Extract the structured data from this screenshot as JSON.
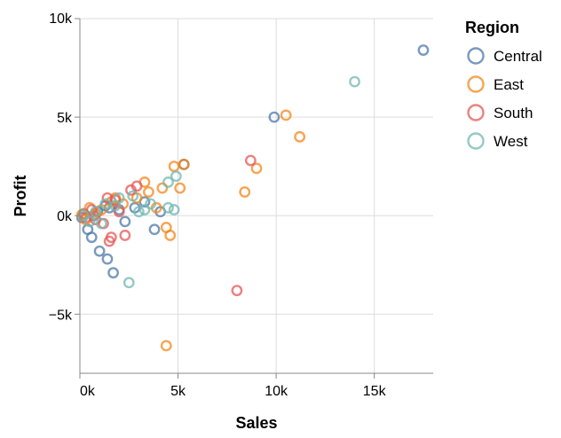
{
  "chart_data": {
    "type": "scatter",
    "title": "",
    "xlabel": "Sales",
    "ylabel": "Profit",
    "xlim": [
      0,
      18000
    ],
    "ylim": [
      -8000,
      10000
    ],
    "x_ticks": [
      0,
      5000,
      10000,
      15000
    ],
    "x_tick_labels": [
      "0k",
      "5k",
      "10k",
      "15k"
    ],
    "y_ticks": [
      -5000,
      0,
      5000,
      10000
    ],
    "y_tick_labels": [
      "−5k",
      "0k",
      "5k",
      "10k"
    ],
    "grid": true,
    "legend_title": "Region",
    "legend_position": "right",
    "series": [
      {
        "name": "Central",
        "color": "#4c78a8",
        "points": [
          [
            17500,
            8400
          ],
          [
            9900,
            5000
          ],
          [
            5300,
            2600
          ],
          [
            3300,
            700
          ],
          [
            4100,
            200
          ],
          [
            3800,
            -700
          ],
          [
            2300,
            -300
          ],
          [
            1700,
            -2900
          ],
          [
            1400,
            -2200
          ],
          [
            1000,
            -1800
          ],
          [
            600,
            -1100
          ],
          [
            400,
            -700
          ],
          [
            1500,
            400
          ],
          [
            1300,
            500
          ],
          [
            200,
            100
          ],
          [
            700,
            0
          ],
          [
            100,
            -100
          ],
          [
            900,
            200
          ],
          [
            2000,
            300
          ],
          [
            2800,
            400
          ]
        ]
      },
      {
        "name": "East",
        "color": "#f58518",
        "points": [
          [
            10500,
            5100
          ],
          [
            11200,
            4000
          ],
          [
            9000,
            2400
          ],
          [
            8400,
            1200
          ],
          [
            5300,
            2600
          ],
          [
            4800,
            2500
          ],
          [
            5100,
            1400
          ],
          [
            3500,
            1200
          ],
          [
            3300,
            1700
          ],
          [
            4200,
            1400
          ],
          [
            4400,
            -600
          ],
          [
            4600,
            -1000
          ],
          [
            4400,
            -6600
          ],
          [
            2900,
            900
          ],
          [
            1600,
            700
          ],
          [
            1100,
            300
          ],
          [
            800,
            100
          ],
          [
            300,
            -200
          ],
          [
            500,
            400
          ],
          [
            100,
            50
          ],
          [
            1800,
            900
          ],
          [
            2200,
            600
          ],
          [
            3900,
            400
          ]
        ]
      },
      {
        "name": "South",
        "color": "#e45756",
        "points": [
          [
            8700,
            2800
          ],
          [
            8000,
            -3800
          ],
          [
            2900,
            1500
          ],
          [
            2300,
            -1000
          ],
          [
            1600,
            -1100
          ],
          [
            1500,
            -1300
          ],
          [
            1200,
            -400
          ],
          [
            2600,
            1300
          ],
          [
            1800,
            800
          ],
          [
            800,
            -200
          ],
          [
            1400,
            900
          ],
          [
            2000,
            200
          ],
          [
            600,
            300
          ],
          [
            300,
            -100
          ]
        ]
      },
      {
        "name": "West",
        "color": "#72b7b2",
        "points": [
          [
            14000,
            6800
          ],
          [
            4900,
            2000
          ],
          [
            4500,
            1700
          ],
          [
            4800,
            300
          ],
          [
            4500,
            400
          ],
          [
            3300,
            300
          ],
          [
            2500,
            -3400
          ],
          [
            2700,
            1000
          ],
          [
            3600,
            600
          ],
          [
            1800,
            500
          ],
          [
            1100,
            -400
          ],
          [
            800,
            200
          ],
          [
            2000,
            900
          ],
          [
            200,
            0
          ],
          [
            500,
            -300
          ],
          [
            3000,
            200
          ],
          [
            1300,
            600
          ]
        ]
      }
    ]
  }
}
